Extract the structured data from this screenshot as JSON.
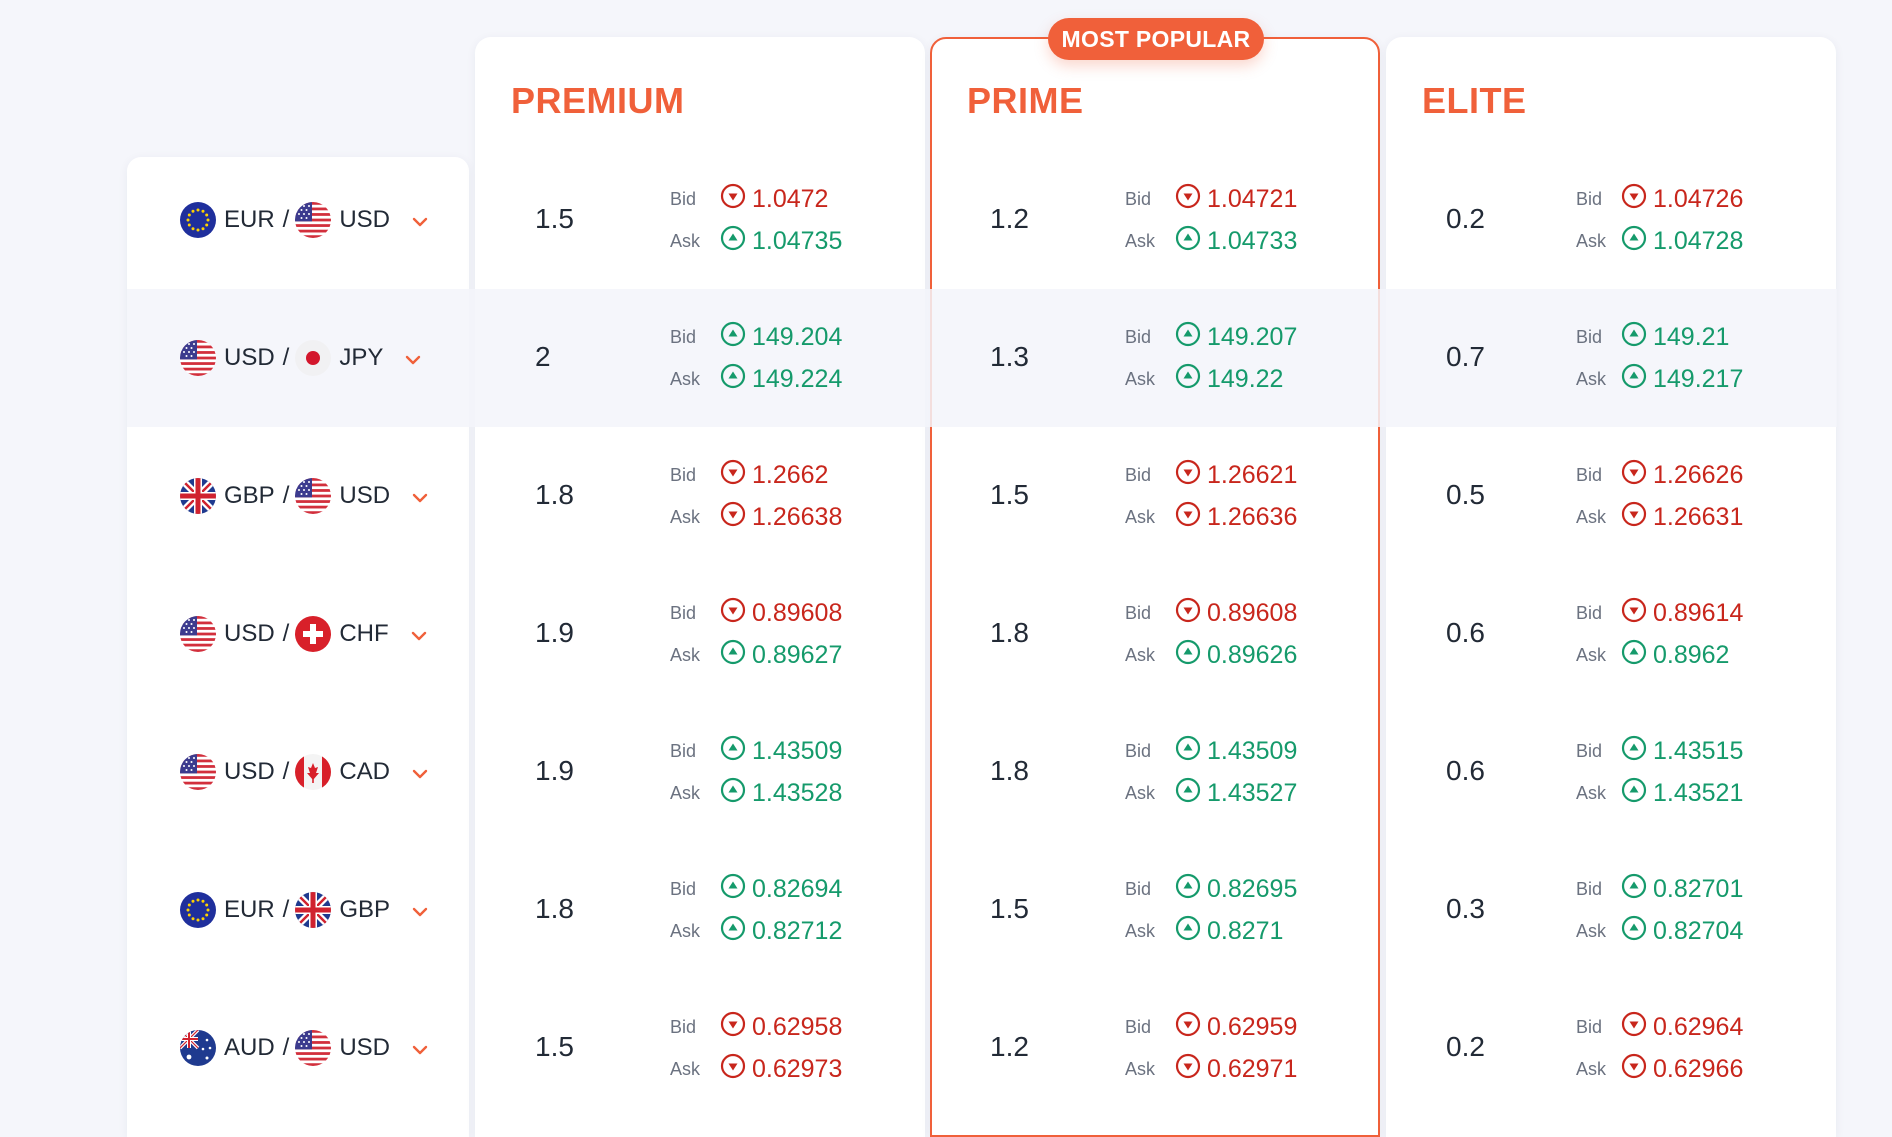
{
  "badge": "MOST POPULAR",
  "plans": [
    "PREMIUM",
    "PRIME",
    "ELITE"
  ],
  "bid_label": "Bid",
  "ask_label": "Ask",
  "colors": {
    "accent": "#f0603a",
    "up": "#159a6b",
    "down": "#c8261c"
  },
  "rows": [
    {
      "base": "EUR",
      "quote": "USD",
      "base_flag": "eu",
      "quote_flag": "us",
      "plans": [
        {
          "spread": "1.5",
          "bid": "1.0472",
          "bid_dir": "down",
          "ask": "1.04735",
          "ask_dir": "up"
        },
        {
          "spread": "1.2",
          "bid": "1.04721",
          "bid_dir": "down",
          "ask": "1.04733",
          "ask_dir": "up"
        },
        {
          "spread": "0.2",
          "bid": "1.04726",
          "bid_dir": "down",
          "ask": "1.04728",
          "ask_dir": "up"
        }
      ]
    },
    {
      "base": "USD",
      "quote": "JPY",
      "base_flag": "us",
      "quote_flag": "jp",
      "plans": [
        {
          "spread": "2",
          "bid": "149.204",
          "bid_dir": "up",
          "ask": "149.224",
          "ask_dir": "up"
        },
        {
          "spread": "1.3",
          "bid": "149.207",
          "bid_dir": "up",
          "ask": "149.22",
          "ask_dir": "up"
        },
        {
          "spread": "0.7",
          "bid": "149.21",
          "bid_dir": "up",
          "ask": "149.217",
          "ask_dir": "up"
        }
      ]
    },
    {
      "base": "GBP",
      "quote": "USD",
      "base_flag": "gb",
      "quote_flag": "us",
      "plans": [
        {
          "spread": "1.8",
          "bid": "1.2662",
          "bid_dir": "down",
          "ask": "1.26638",
          "ask_dir": "down"
        },
        {
          "spread": "1.5",
          "bid": "1.26621",
          "bid_dir": "down",
          "ask": "1.26636",
          "ask_dir": "down"
        },
        {
          "spread": "0.5",
          "bid": "1.26626",
          "bid_dir": "down",
          "ask": "1.26631",
          "ask_dir": "down"
        }
      ]
    },
    {
      "base": "USD",
      "quote": "CHF",
      "base_flag": "us",
      "quote_flag": "ch",
      "plans": [
        {
          "spread": "1.9",
          "bid": "0.89608",
          "bid_dir": "down",
          "ask": "0.89627",
          "ask_dir": "up"
        },
        {
          "spread": "1.8",
          "bid": "0.89608",
          "bid_dir": "down",
          "ask": "0.89626",
          "ask_dir": "up"
        },
        {
          "spread": "0.6",
          "bid": "0.89614",
          "bid_dir": "down",
          "ask": "0.8962",
          "ask_dir": "up"
        }
      ]
    },
    {
      "base": "USD",
      "quote": "CAD",
      "base_flag": "us",
      "quote_flag": "ca",
      "plans": [
        {
          "spread": "1.9",
          "bid": "1.43509",
          "bid_dir": "up",
          "ask": "1.43528",
          "ask_dir": "up"
        },
        {
          "spread": "1.8",
          "bid": "1.43509",
          "bid_dir": "up",
          "ask": "1.43527",
          "ask_dir": "up"
        },
        {
          "spread": "0.6",
          "bid": "1.43515",
          "bid_dir": "up",
          "ask": "1.43521",
          "ask_dir": "up"
        }
      ]
    },
    {
      "base": "EUR",
      "quote": "GBP",
      "base_flag": "eu",
      "quote_flag": "gb",
      "plans": [
        {
          "spread": "1.8",
          "bid": "0.82694",
          "bid_dir": "up",
          "ask": "0.82712",
          "ask_dir": "up"
        },
        {
          "spread": "1.5",
          "bid": "0.82695",
          "bid_dir": "up",
          "ask": "0.8271",
          "ask_dir": "up"
        },
        {
          "spread": "0.3",
          "bid": "0.82701",
          "bid_dir": "up",
          "ask": "0.82704",
          "ask_dir": "up"
        }
      ]
    },
    {
      "base": "AUD",
      "quote": "USD",
      "base_flag": "au",
      "quote_flag": "us",
      "plans": [
        {
          "spread": "1.5",
          "bid": "0.62958",
          "bid_dir": "down",
          "ask": "0.62973",
          "ask_dir": "down"
        },
        {
          "spread": "1.2",
          "bid": "0.62959",
          "bid_dir": "down",
          "ask": "0.62971",
          "ask_dir": "down"
        },
        {
          "spread": "0.2",
          "bid": "0.62964",
          "bid_dir": "down",
          "ask": "0.62966",
          "ask_dir": "down"
        }
      ]
    }
  ]
}
